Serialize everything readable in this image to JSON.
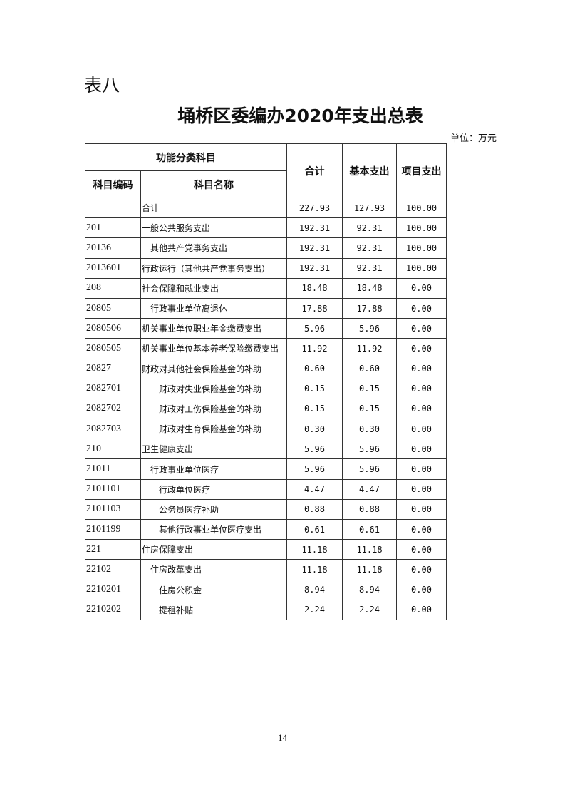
{
  "doc_label": "表八",
  "title": "埇桥区委编办2020年支出总表",
  "unit": "单位：万元",
  "header": {
    "group": "功能分类科目",
    "code": "科目编码",
    "name": "科目名称",
    "total": "合计",
    "basic": "基本支出",
    "project": "项目支出"
  },
  "rows": [
    {
      "code": "",
      "name": "合计",
      "indent": 0,
      "total": "227.93",
      "basic": "127.93",
      "project": "100.00"
    },
    {
      "code": "201",
      "name": "一般公共服务支出",
      "indent": 0,
      "total": "192.31",
      "basic": "92.31",
      "project": "100.00"
    },
    {
      "code": "20136",
      "name": "其他共产党事务支出",
      "indent": 1,
      "total": "192.31",
      "basic": "92.31",
      "project": "100.00"
    },
    {
      "code": "2013601",
      "name": "行政运行（其他共产党事务支出）",
      "indent": 0,
      "total": "192.31",
      "basic": "92.31",
      "project": "100.00"
    },
    {
      "code": "208",
      "name": "社会保障和就业支出",
      "indent": 0,
      "total": "18.48",
      "basic": "18.48",
      "project": "0.00"
    },
    {
      "code": "20805",
      "name": "行政事业单位离退休",
      "indent": 1,
      "total": "17.88",
      "basic": "17.88",
      "project": "0.00"
    },
    {
      "code": "2080506",
      "name": "机关事业单位职业年金缴费支出",
      "indent": 0,
      "total": "5.96",
      "basic": "5.96",
      "project": "0.00"
    },
    {
      "code": "2080505",
      "name": "机关事业单位基本养老保险缴费支出",
      "indent": 0,
      "total": "11.92",
      "basic": "11.92",
      "project": "0.00"
    },
    {
      "code": "20827",
      "name": "财政对其他社会保险基金的补助",
      "indent": 0,
      "total": "0.60",
      "basic": "0.60",
      "project": "0.00"
    },
    {
      "code": "2082701",
      "name": "财政对失业保险基金的补助",
      "indent": 2,
      "total": "0.15",
      "basic": "0.15",
      "project": "0.00"
    },
    {
      "code": "2082702",
      "name": "财政对工伤保险基金的补助",
      "indent": 2,
      "total": "0.15",
      "basic": "0.15",
      "project": "0.00"
    },
    {
      "code": "2082703",
      "name": "财政对生育保险基金的补助",
      "indent": 2,
      "total": "0.30",
      "basic": "0.30",
      "project": "0.00"
    },
    {
      "code": "210",
      "name": "卫生健康支出",
      "indent": 0,
      "total": "5.96",
      "basic": "5.96",
      "project": "0.00"
    },
    {
      "code": "21011",
      "name": "行政事业单位医疗",
      "indent": 1,
      "total": "5.96",
      "basic": "5.96",
      "project": "0.00"
    },
    {
      "code": "2101101",
      "name": "行政单位医疗",
      "indent": 2,
      "total": "4.47",
      "basic": "4.47",
      "project": "0.00"
    },
    {
      "code": "2101103",
      "name": "公务员医疗补助",
      "indent": 2,
      "total": "0.88",
      "basic": "0.88",
      "project": "0.00"
    },
    {
      "code": "2101199",
      "name": "其他行政事业单位医疗支出",
      "indent": 2,
      "total": "0.61",
      "basic": "0.61",
      "project": "0.00"
    },
    {
      "code": "221",
      "name": "住房保障支出",
      "indent": 0,
      "total": "11.18",
      "basic": "11.18",
      "project": "0.00"
    },
    {
      "code": "22102",
      "name": "住房改革支出",
      "indent": 1,
      "total": "11.18",
      "basic": "11.18",
      "project": "0.00"
    },
    {
      "code": "2210201",
      "name": "住房公积金",
      "indent": 2,
      "total": "8.94",
      "basic": "8.94",
      "project": "0.00"
    },
    {
      "code": "2210202",
      "name": "提租补贴",
      "indent": 2,
      "total": "2.24",
      "basic": "2.24",
      "project": "0.00"
    }
  ],
  "page_number": "14"
}
